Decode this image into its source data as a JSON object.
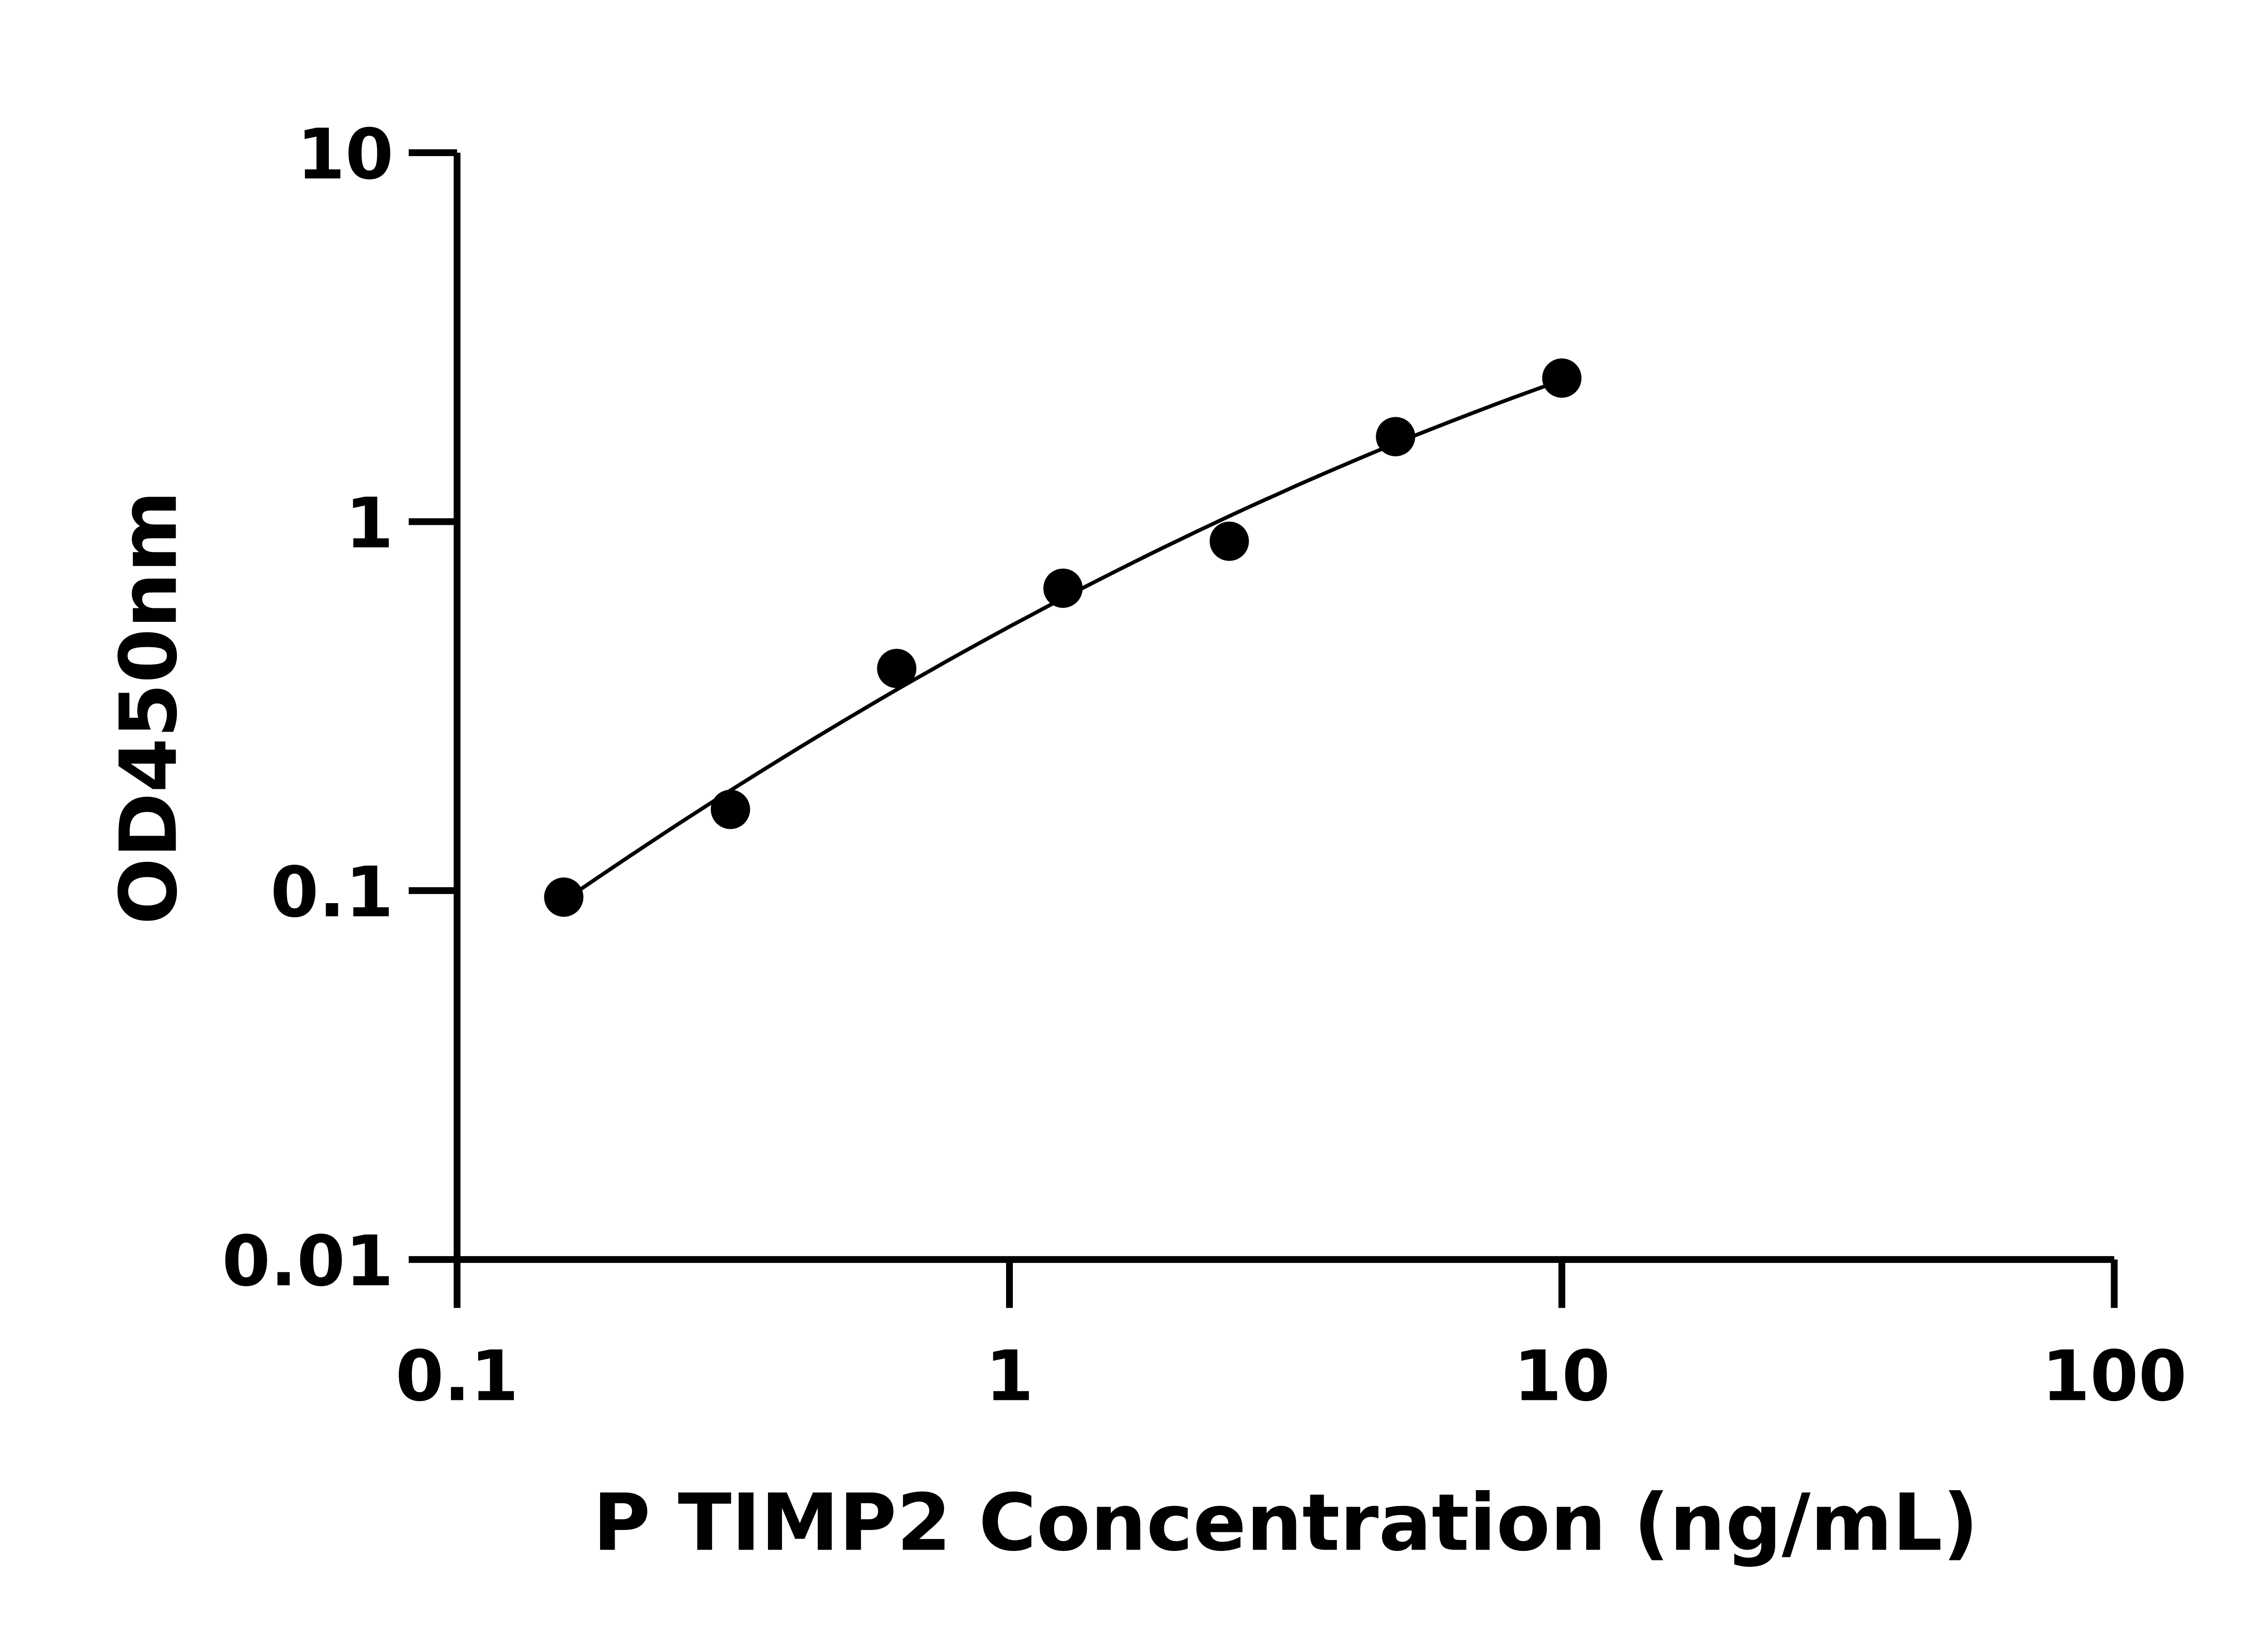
{
  "chart_data": {
    "type": "scatter",
    "title": "",
    "xlabel": "P TIMP2 Concentration (ng/mL)",
    "ylabel": "OD450nm",
    "xscale": "log",
    "yscale": "log",
    "xlim": [
      0.1,
      100
    ],
    "ylim": [
      0.01,
      10
    ],
    "xticks": [
      "0.1",
      "1",
      "10",
      "100"
    ],
    "yticks": [
      "0.01",
      "0.1",
      "1",
      "10"
    ],
    "grid": false,
    "legend": "none",
    "series": [
      {
        "x": [
          0.156,
          0.3125,
          0.625,
          1.25,
          2.5,
          5,
          10
        ],
        "y": [
          0.096,
          0.166,
          0.4,
          0.66,
          0.885,
          1.7,
          2.45
        ],
        "marker": "circle",
        "fit_line": true,
        "color": "#000000"
      }
    ]
  }
}
